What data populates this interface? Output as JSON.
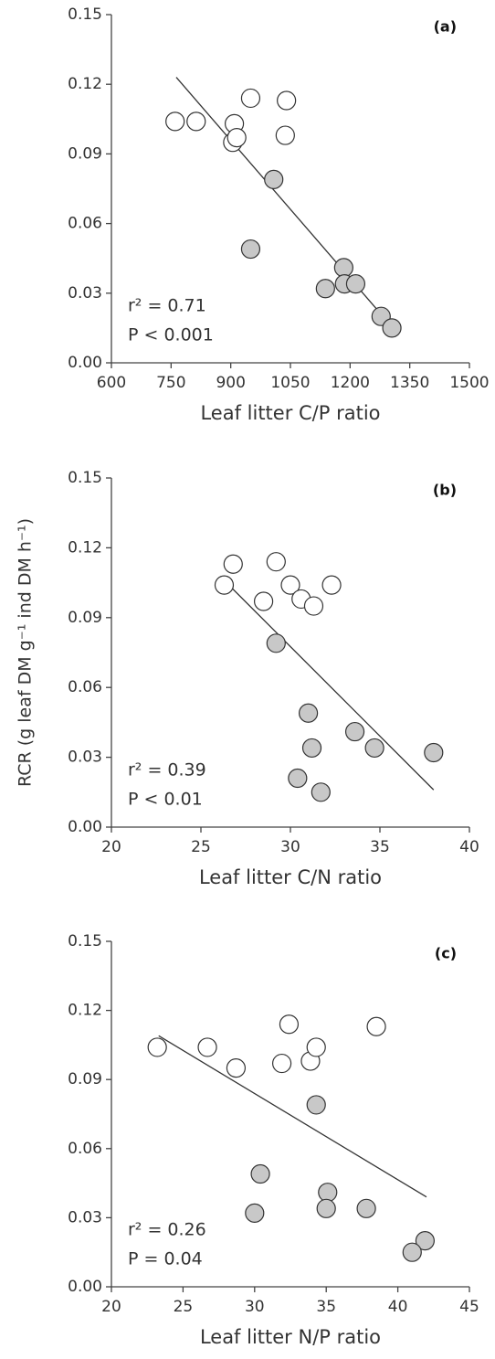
{
  "chart_data": [
    {
      "type": "scatter",
      "panel_label": "(a)",
      "x_label": "Leaf litter C/P ratio",
      "annotations": [
        "r² = 0.71",
        "P < 0.001"
      ],
      "xlim": [
        600,
        1500
      ],
      "xticks": [
        600,
        750,
        900,
        1050,
        1200,
        1350,
        1500
      ],
      "ylim": [
        0,
        0.15
      ],
      "yticks": [
        {
          "value": 0,
          "label": "0.00"
        },
        0.03,
        0.06,
        0.09,
        0.12,
        0.15
      ],
      "series": [
        {
          "color": "#ffffff",
          "x": [
            760,
            813,
            950,
            1040,
            1037,
            909,
            905,
            915
          ],
          "values": [
            0.104,
            0.104,
            0.114,
            0.113,
            0.098,
            0.103,
            0.095,
            0.097
          ]
        },
        {
          "color": "#c8c8c8",
          "x": [
            1008,
            950,
            1184,
            1138,
            1186,
            1214,
            1278,
            1305
          ],
          "values": [
            0.079,
            0.049,
            0.041,
            0.032,
            0.034,
            0.034,
            0.02,
            0.015
          ]
        }
      ],
      "trend_line": {
        "x": [
          763,
          1308
        ],
        "y": [
          0.123,
          0.015
        ]
      }
    },
    {
      "type": "scatter",
      "panel_label": "(b)",
      "x_label": "Leaf litter C/N ratio",
      "y_label": "RCR (g leaf DM g⁻¹ ind DM h⁻¹)",
      "annotations": [
        "r² = 0.39",
        "P < 0.01"
      ],
      "xlim": [
        20,
        40
      ],
      "xticks": [
        20,
        25,
        30,
        35,
        40
      ],
      "ylim": [
        0,
        0.15
      ],
      "yticks": [
        {
          "value": 0,
          "label": "0.00"
        },
        0.03,
        0.06,
        0.09,
        0.12,
        0.15
      ],
      "series": [
        {
          "color": "#ffffff",
          "x": [
            26.3,
            26.8,
            29.2,
            28.5,
            30.0,
            30.6,
            31.3,
            32.3
          ],
          "values": [
            0.104,
            0.113,
            0.114,
            0.097,
            0.104,
            0.098,
            0.095,
            0.104
          ]
        },
        {
          "color": "#c8c8c8",
          "x": [
            29.2,
            31.0,
            33.6,
            31.2,
            34.7,
            38.0,
            30.4,
            31.7
          ],
          "values": [
            0.079,
            0.049,
            0.041,
            0.034,
            0.034,
            0.032,
            0.021,
            0.015
          ]
        }
      ],
      "trend_line": {
        "x": [
          26.3,
          38.0
        ],
        "y": [
          0.106,
          0.016
        ]
      }
    },
    {
      "type": "scatter",
      "panel_label": "(c)",
      "x_label": "Leaf litter N/P ratio",
      "annotations": [
        "r² = 0.26",
        "P = 0.04"
      ],
      "xlim": [
        20,
        45
      ],
      "xticks": [
        20,
        25,
        30,
        35,
        40,
        45
      ],
      "ylim": [
        0,
        0.15
      ],
      "yticks": [
        {
          "value": 0,
          "label": "0.00"
        },
        0.03,
        0.06,
        0.09,
        0.12,
        0.15
      ],
      "series": [
        {
          "color": "#ffffff",
          "x": [
            23.2,
            26.7,
            32.4,
            38.5,
            31.9,
            33.9,
            28.7,
            34.3
          ],
          "values": [
            0.104,
            0.104,
            0.114,
            0.113,
            0.097,
            0.098,
            0.095,
            0.104
          ]
        },
        {
          "color": "#c8c8c8",
          "x": [
            34.3,
            30.4,
            35.1,
            35.0,
            37.8,
            30.0,
            41.9,
            41.0
          ],
          "values": [
            0.079,
            0.049,
            0.041,
            0.034,
            0.034,
            0.032,
            0.02,
            0.015
          ]
        }
      ],
      "trend_line": {
        "x": [
          23.3,
          42.0
        ],
        "y": [
          0.109,
          0.039
        ]
      }
    }
  ]
}
